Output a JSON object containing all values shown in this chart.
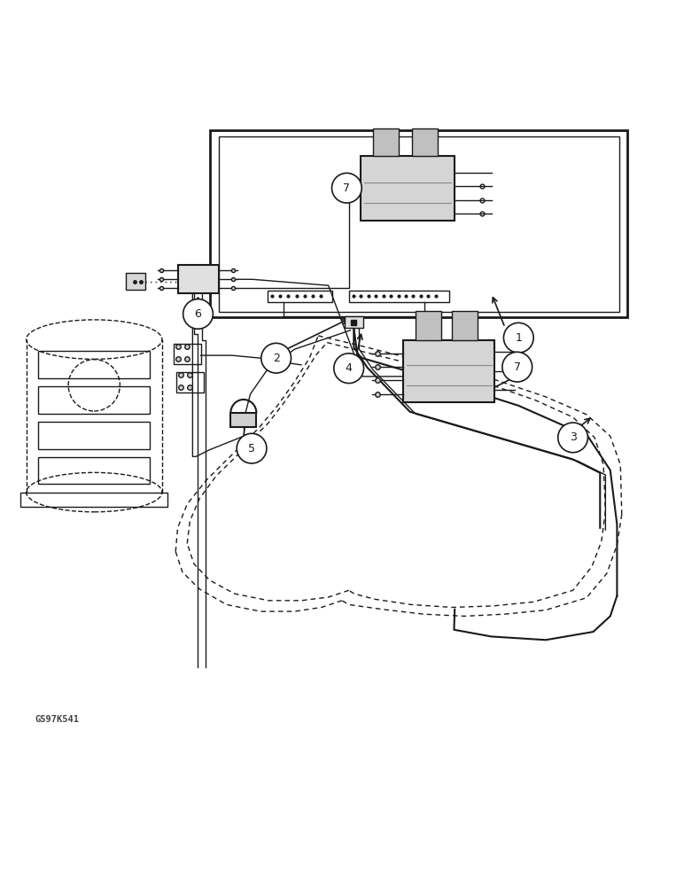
{
  "background_color": "#ffffff",
  "line_color": "#1a1a1a",
  "figure_width": 7.72,
  "figure_height": 10.0,
  "dpi": 100,
  "watermark": "GS97K541"
}
